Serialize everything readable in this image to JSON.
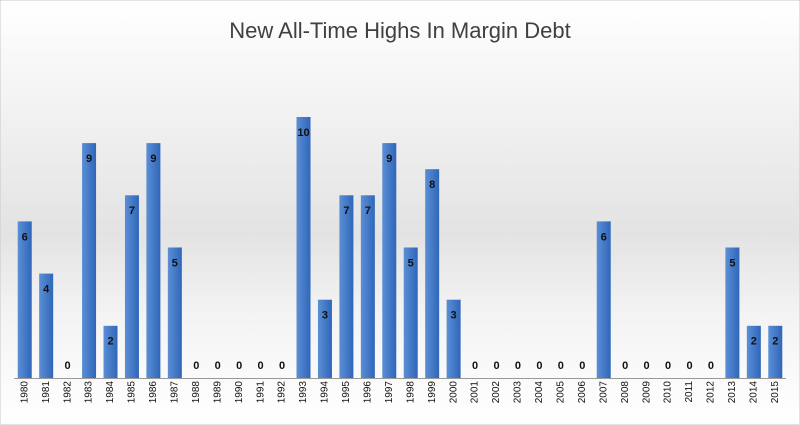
{
  "chart_data": {
    "type": "bar",
    "title": "New All-Time Highs In Margin Debt",
    "categories": [
      "1980",
      "1981",
      "1982",
      "1983",
      "1984",
      "1985",
      "1986",
      "1987",
      "1988",
      "1989",
      "1990",
      "1991",
      "1992",
      "1993",
      "1994",
      "1995",
      "1996",
      "1997",
      "1998",
      "1999",
      "2000",
      "2001",
      "2002",
      "2003",
      "2004",
      "2005",
      "2006",
      "2007",
      "2008",
      "2009",
      "2010",
      "2011",
      "2012",
      "2013",
      "2014",
      "2015"
    ],
    "values": [
      6,
      4,
      0,
      9,
      2,
      7,
      9,
      5,
      0,
      0,
      0,
      0,
      0,
      10,
      3,
      7,
      7,
      9,
      5,
      8,
      3,
      0,
      0,
      0,
      0,
      0,
      0,
      6,
      0,
      0,
      0,
      0,
      0,
      5,
      2,
      2
    ],
    "color": "#3f78c8"
  }
}
